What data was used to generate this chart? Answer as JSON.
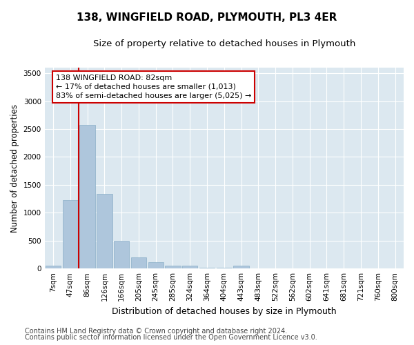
{
  "title": "138, WINGFIELD ROAD, PLYMOUTH, PL3 4ER",
  "subtitle": "Size of property relative to detached houses in Plymouth",
  "xlabel": "Distribution of detached houses by size in Plymouth",
  "ylabel": "Number of detached properties",
  "categories": [
    "7sqm",
    "47sqm",
    "86sqm",
    "126sqm",
    "166sqm",
    "205sqm",
    "245sqm",
    "285sqm",
    "324sqm",
    "364sqm",
    "404sqm",
    "443sqm",
    "483sqm",
    "522sqm",
    "562sqm",
    "602sqm",
    "641sqm",
    "681sqm",
    "721sqm",
    "760sqm",
    "800sqm"
  ],
  "values": [
    55,
    1230,
    2580,
    1340,
    500,
    200,
    110,
    55,
    50,
    20,
    10,
    50,
    5,
    0,
    0,
    0,
    0,
    0,
    0,
    0,
    0
  ],
  "bar_color": "#aec6dc",
  "bar_edge_color": "#8aafc8",
  "vline_x": 1.5,
  "vline_color": "#cc0000",
  "annotation_text": "138 WINGFIELD ROAD: 82sqm\n← 17% of detached houses are smaller (1,013)\n83% of semi-detached houses are larger (5,025) →",
  "annotation_box_color": "#ffffff",
  "annotation_box_edge": "#cc0000",
  "ylim": [
    0,
    3600
  ],
  "yticks": [
    0,
    500,
    1000,
    1500,
    2000,
    2500,
    3000,
    3500
  ],
  "plot_bg_color": "#dce8f0",
  "footer_line1": "Contains HM Land Registry data © Crown copyright and database right 2024.",
  "footer_line2": "Contains public sector information licensed under the Open Government Licence v3.0.",
  "title_fontsize": 11,
  "subtitle_fontsize": 9.5,
  "xlabel_fontsize": 9,
  "ylabel_fontsize": 8.5,
  "tick_fontsize": 7.5,
  "annotation_fontsize": 8,
  "footer_fontsize": 7
}
